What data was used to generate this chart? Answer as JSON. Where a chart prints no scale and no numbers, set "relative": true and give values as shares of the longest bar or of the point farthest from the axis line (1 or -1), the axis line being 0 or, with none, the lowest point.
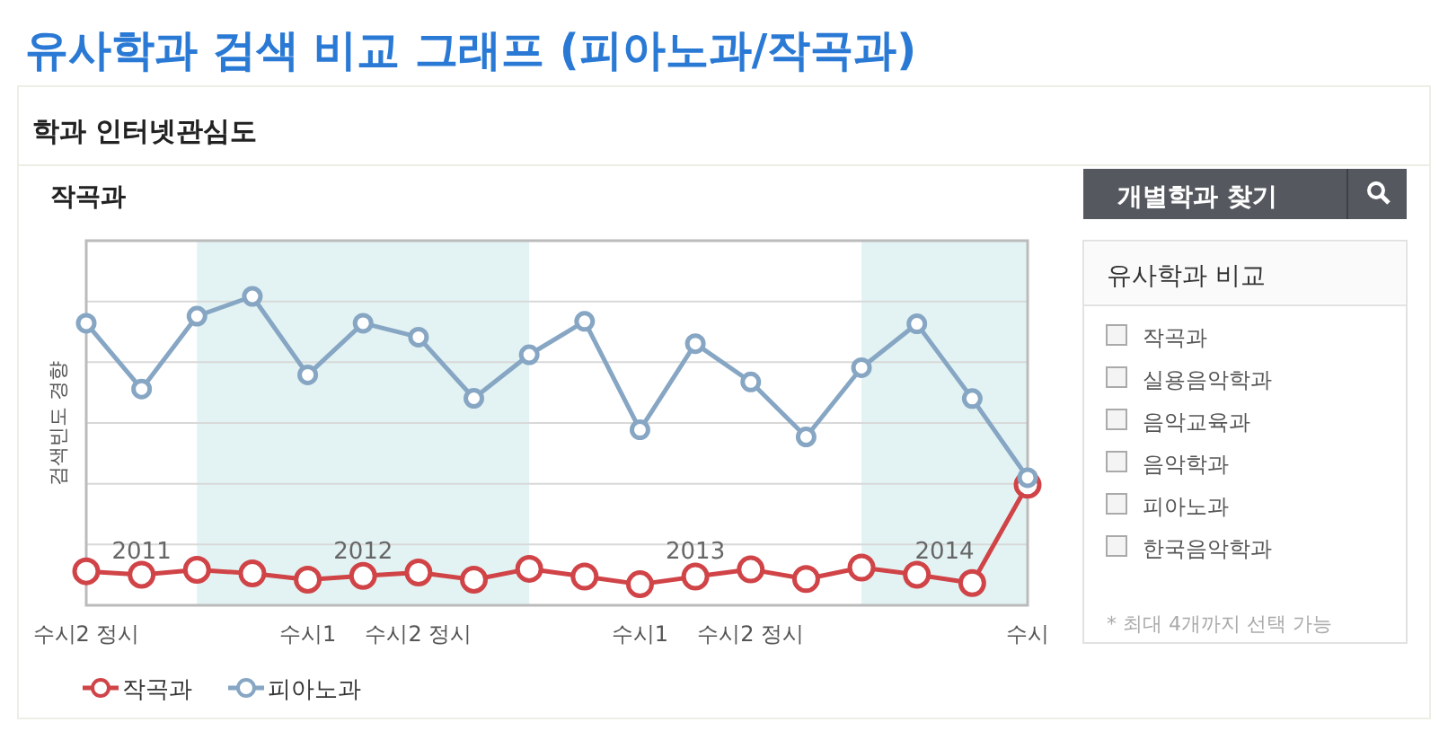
{
  "chart_data": [
    {
      "type": "line",
      "title": "유사학과 검색 비교 그래프 (피아노과/작곡과)",
      "subtitle": "학과 인터넷관심도",
      "ylabel": "검색빈도 경향",
      "relative": true,
      "grid": "y",
      "marker": "circle",
      "legend": "bottom left",
      "annotations": [
        "작곡과",
        "2011",
        "2012",
        "2013",
        "2014"
      ],
      "categories": [
        "수시2 정시",
        null,
        null,
        null,
        "수시1",
        null,
        "수시2 정시",
        null,
        null,
        null,
        "수시1",
        null,
        "수시2 정시",
        null,
        null,
        null,
        null,
        "수시"
      ],
      "series": [
        {
          "name": "작곡과",
          "color": "#d04448",
          "values": [
            0.11,
            0.099,
            0.115,
            0.103,
            0.083,
            0.095,
            0.106,
            0.083,
            0.118,
            0.093,
            0.068,
            0.093,
            0.116,
            0.085,
            0.122,
            0.099,
            0.072,
            0.39
          ]
        },
        {
          "name": "피아노과",
          "color": "#86a6c4",
          "values": [
            0.913,
            0.7,
            0.936,
            1,
            0.746,
            0.913,
            0.868,
            0.67,
            0.811,
            0.919,
            0.568,
            0.847,
            0.723,
            0.545,
            0.769,
            0.911,
            0.669,
            0.413
          ]
        }
      ]
    },
    {
      "type": "other",
      "title": "유사학과 비교",
      "annotations": [
        "개별학과 찾기",
        "작곡과",
        "실용음악학과",
        "음악교육과",
        "음악학과",
        "피아노과",
        "한국음악학과",
        "* 최대 4개까지 선택 가능"
      ]
    }
  ]
}
